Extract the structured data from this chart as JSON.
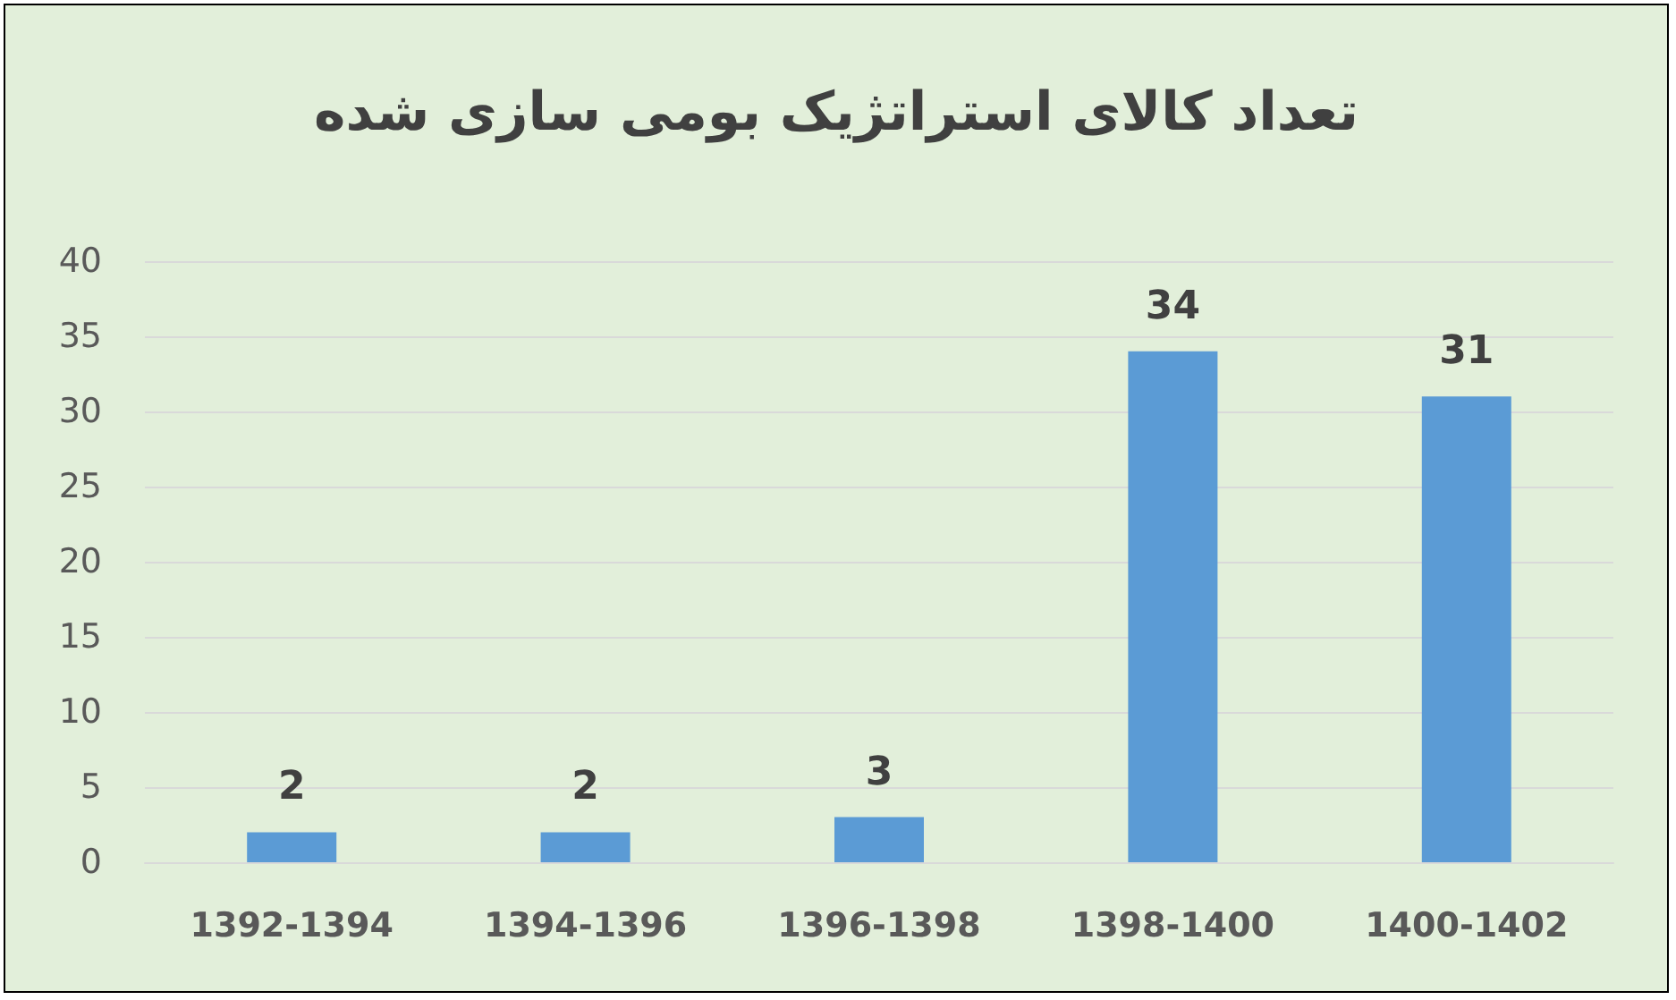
{
  "chart_data": {
    "type": "bar",
    "title": "تعداد کالای استراتژیک بومی سازی شده",
    "categories": [
      "1392-1394",
      "1394-1396",
      "1396-1398",
      "1398-1400",
      "1400-1402"
    ],
    "values": [
      2,
      2,
      3,
      34,
      31
    ],
    "color": "#5b9bd5",
    "ylim": [
      0,
      40
    ],
    "yticks": [
      0,
      5,
      10,
      15,
      20,
      25,
      30,
      35,
      40
    ],
    "grid": "y",
    "data_labels": true
  }
}
